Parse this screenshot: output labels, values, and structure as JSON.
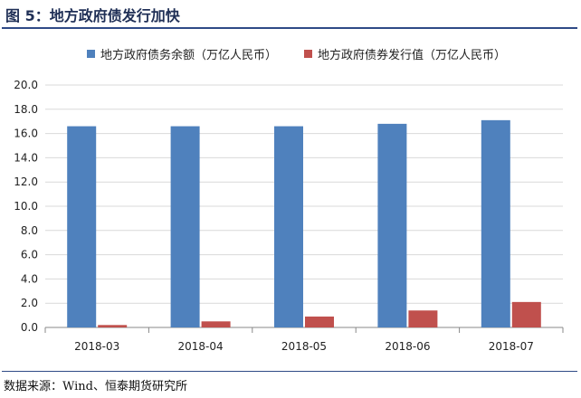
{
  "header": {
    "title": "图 5：地方政府债发行加快"
  },
  "footer": {
    "source": "数据来源：Wind、恒泰期货研究所"
  },
  "colors": {
    "series_1": "#4f81bd",
    "series_2": "#c0504d",
    "title": "#1f2f56",
    "rule": "#2f4a86",
    "grid": "#d9d9d9"
  },
  "chart_data": {
    "type": "bar",
    "categories": [
      "2018-03",
      "2018-04",
      "2018-05",
      "2018-06",
      "2018-07"
    ],
    "series": [
      {
        "name": "地方政府债务余额（万亿人民币）",
        "values": [
          16.6,
          16.6,
          16.6,
          16.8,
          17.1
        ]
      },
      {
        "name": "地方政府债券发行值（万亿人民币）",
        "values": [
          0.2,
          0.5,
          0.9,
          1.4,
          2.1
        ]
      }
    ],
    "ylim": [
      0,
      20
    ],
    "yticks": [
      "0.0",
      "2.0",
      "4.0",
      "6.0",
      "8.0",
      "10.0",
      "12.0",
      "14.0",
      "16.0",
      "18.0",
      "20.0"
    ],
    "grid": true,
    "legend": "top"
  }
}
